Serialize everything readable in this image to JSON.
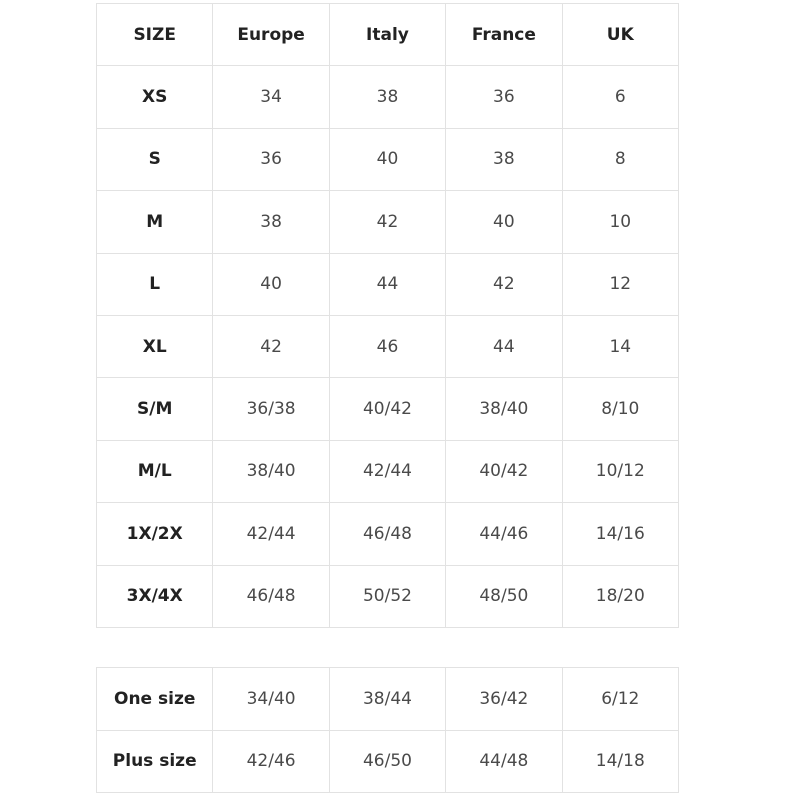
{
  "size_chart": {
    "headers": [
      "SIZE",
      "Europe",
      "Italy",
      "France",
      "UK"
    ],
    "rows": [
      [
        "XS",
        "34",
        "38",
        "36",
        "6"
      ],
      [
        "S",
        "36",
        "40",
        "38",
        "8"
      ],
      [
        "M",
        "38",
        "42",
        "40",
        "10"
      ],
      [
        "L",
        "40",
        "44",
        "42",
        "12"
      ],
      [
        "XL",
        "42",
        "46",
        "44",
        "14"
      ],
      [
        "S/M",
        "36/38",
        "40/42",
        "38/40",
        "8/10"
      ],
      [
        "M/L",
        "38/40",
        "42/44",
        "40/42",
        "10/12"
      ],
      [
        "1X/2X",
        "42/44",
        "46/48",
        "44/46",
        "14/16"
      ],
      [
        "3X/4X",
        "46/48",
        "50/52",
        "48/50",
        "18/20"
      ]
    ]
  },
  "special_sizes": {
    "rows": [
      [
        "One size",
        "34/40",
        "38/44",
        "36/42",
        "6/12"
      ],
      [
        "Plus size",
        "42/46",
        "46/50",
        "44/48",
        "14/18"
      ]
    ]
  }
}
